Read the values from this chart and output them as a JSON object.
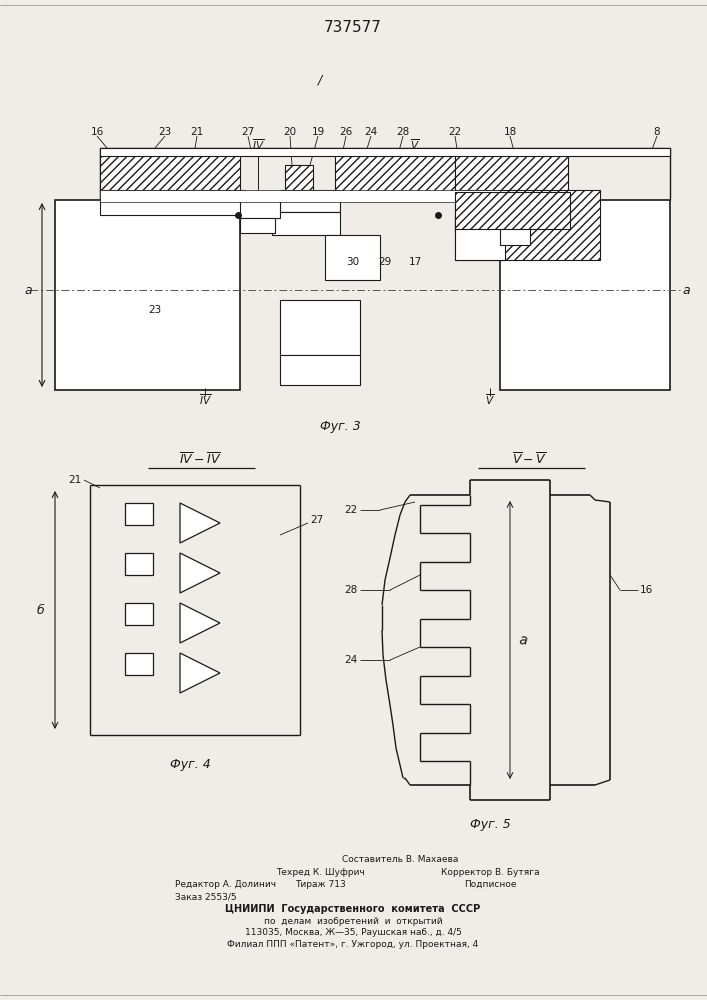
{
  "patent_number": "737577",
  "bg_color": "#f0ede8",
  "line_color": "#1a1a1a",
  "fig3_label": "Фуг. 3",
  "fig4_label": "Фуг. 4",
  "fig5_label": "Фуг. 5",
  "footer_lines": [
    "Составитель В. Махаева",
    "Техред К. Шуфрич",
    "Корректор В. Бутяга",
    "Тираж 713",
    "Подписное",
    "ЦНИИПИ  Государственного  комитета  СССР",
    "по  делам  изобретений  и  открытий",
    "113035, Москва, Ж—35, Раушская наб., д. 4/5",
    "Филиал ППП «Патент», г. Ужгород, ул. Проектная, 4"
  ],
  "editor_line": "Редактор А. Долинич",
  "order_line": "Заказ 2553/5"
}
